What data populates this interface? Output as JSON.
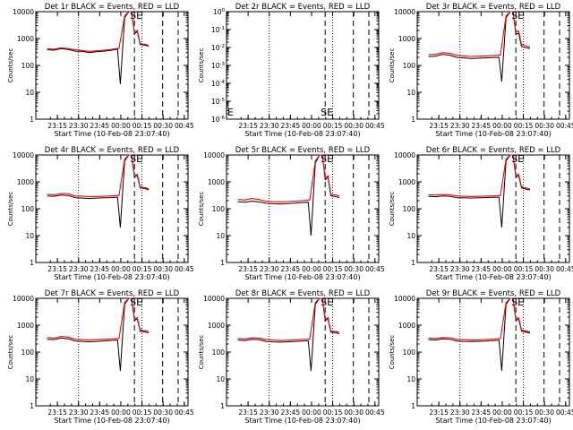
{
  "window": {
    "title": ""
  },
  "common": {
    "xlabel": "Start Time (10-Feb-08 23:07:40)",
    "ylabel": "Counts/sec",
    "x_ticks": [
      "23:15",
      "23:30",
      "23:45",
      "00:00",
      "00:15",
      "00:30",
      "00:45"
    ],
    "y_tick_labels_log": [
      "1",
      "10",
      "100",
      "1000",
      "10000"
    ],
    "y_tick_labels_det2": [
      "10^0",
      "10^-1",
      "10^-2",
      "10^-3",
      "10^-4",
      "10^-5",
      "10^-6"
    ],
    "colors": {
      "events": "#000000",
      "lld": "#ff0000",
      "axes": "#000000"
    }
  },
  "chart_data": [
    {
      "type": "line",
      "title": "Det 1r BLACK = Events, RED = LLD",
      "xlabel": "Start Time (10-Feb-08 23:07:40)",
      "ylabel": "Counts/sec",
      "x_ticks": [
        "23:15",
        "23:30",
        "23:45",
        "00:00",
        "00:15",
        "00:30",
        "00:45"
      ],
      "yscale": "log",
      "ylim": [
        1,
        10000
      ],
      "annotations": [
        "SE"
      ],
      "series": [
        {
          "name": "Events",
          "color": "#000000",
          "x": [
            0,
            5,
            10,
            15,
            20,
            25,
            30,
            35,
            40,
            45,
            50,
            52,
            55,
            58,
            60,
            62,
            64,
            66,
            70,
            72
          ],
          "y": [
            380,
            370,
            420,
            390,
            340,
            330,
            300,
            320,
            340,
            360,
            400,
            20,
            6000,
            10000,
            10000,
            1500,
            1800,
            600,
            560,
            520
          ]
        },
        {
          "name": "LLD",
          "color": "#ff0000",
          "x": [
            0,
            5,
            10,
            15,
            20,
            25,
            30,
            35,
            40,
            45,
            50,
            51,
            55,
            58,
            60,
            62,
            64,
            66,
            70,
            72
          ],
          "y": [
            420,
            400,
            450,
            420,
            380,
            360,
            330,
            350,
            370,
            390,
            430,
            430,
            7000,
            10000,
            10000,
            1700,
            2000,
            650,
            600,
            560
          ]
        }
      ]
    },
    {
      "type": "line",
      "title": "Det 2r BLACK = Events, RED = LLD",
      "xlabel": "Start Time (10-Feb-08 23:07:40)",
      "ylabel": "Counts/sec",
      "x_ticks": [
        "23:15",
        "23:30",
        "23:45",
        "00:00",
        "00:15",
        "00:30",
        "00:45"
      ],
      "yscale": "log",
      "ylim": [
        1e-06,
        1
      ],
      "annotations": [
        "E",
        "SE"
      ],
      "series": []
    },
    {
      "type": "line",
      "title": "Det 3r BLACK = Events, RED = LLD",
      "xlabel": "Start Time (10-Feb-08 23:07:40)",
      "ylabel": "Counts/sec",
      "x_ticks": [
        "23:15",
        "23:30",
        "23:45",
        "00:00",
        "00:15",
        "00:30",
        "00:45"
      ],
      "yscale": "log",
      "ylim": [
        1,
        10000
      ],
      "annotations": [
        "SE"
      ],
      "series": [
        {
          "name": "Events",
          "color": "#000000",
          "x": [
            0,
            5,
            10,
            15,
            20,
            25,
            30,
            35,
            40,
            45,
            50,
            52,
            55,
            58,
            60,
            62,
            64,
            66,
            70,
            72
          ],
          "y": [
            210,
            220,
            260,
            240,
            200,
            190,
            180,
            185,
            190,
            195,
            200,
            25,
            6000,
            10000,
            10000,
            1400,
            1600,
            500,
            450,
            420
          ]
        },
        {
          "name": "LLD",
          "color": "#ff0000",
          "x": [
            0,
            5,
            10,
            15,
            20,
            25,
            30,
            35,
            40,
            45,
            50,
            51,
            55,
            58,
            60,
            62,
            64,
            66,
            70,
            72
          ],
          "y": [
            250,
            260,
            300,
            280,
            240,
            225,
            215,
            220,
            225,
            230,
            240,
            240,
            7000,
            10000,
            10000,
            1700,
            1900,
            600,
            520,
            480
          ]
        }
      ]
    },
    {
      "type": "line",
      "title": "Det 4r BLACK = Events, RED = LLD",
      "xlabel": "Start Time (10-Feb-08 23:07:40)",
      "ylabel": "Counts/sec",
      "x_ticks": [
        "23:15",
        "23:30",
        "23:45",
        "00:00",
        "00:15",
        "00:30",
        "00:45"
      ],
      "yscale": "log",
      "ylim": [
        1,
        10000
      ],
      "annotations": [
        "SE"
      ],
      "series": [
        {
          "name": "Events",
          "color": "#000000",
          "x": [
            0,
            5,
            10,
            15,
            20,
            25,
            30,
            35,
            40,
            45,
            50,
            52,
            55,
            58,
            60,
            62,
            64,
            66,
            70,
            72
          ],
          "y": [
            300,
            290,
            320,
            310,
            260,
            250,
            240,
            250,
            255,
            260,
            270,
            20,
            6000,
            10000,
            10000,
            1500,
            1700,
            600,
            550,
            500
          ]
        },
        {
          "name": "LLD",
          "color": "#ff0000",
          "x": [
            0,
            5,
            10,
            15,
            20,
            25,
            30,
            35,
            40,
            45,
            50,
            51,
            55,
            58,
            60,
            62,
            64,
            66,
            70,
            72
          ],
          "y": [
            350,
            330,
            370,
            360,
            300,
            290,
            280,
            285,
            290,
            300,
            310,
            310,
            7000,
            10000,
            10000,
            1700,
            1900,
            650,
            600,
            550
          ]
        }
      ]
    },
    {
      "type": "line",
      "title": "Det 5r BLACK = Events, RED = LLD",
      "xlabel": "Start Time (10-Feb-08 23:07:40)",
      "ylabel": "Counts/sec",
      "x_ticks": [
        "23:15",
        "23:30",
        "23:45",
        "00:00",
        "00:15",
        "00:30",
        "00:45"
      ],
      "yscale": "log",
      "ylim": [
        1,
        10000
      ],
      "annotations": [
        "SE"
      ],
      "series": [
        {
          "name": "Events",
          "color": "#000000",
          "x": [
            0,
            5,
            10,
            15,
            20,
            25,
            30,
            35,
            40,
            45,
            50,
            52,
            55,
            58,
            60,
            62,
            64,
            66,
            70,
            72
          ],
          "y": [
            180,
            175,
            190,
            180,
            160,
            155,
            150,
            155,
            160,
            170,
            175,
            10,
            5000,
            10000,
            10000,
            1200,
            1500,
            300,
            280,
            260
          ]
        },
        {
          "name": "LLD",
          "color": "#ff0000",
          "x": [
            0,
            5,
            10,
            15,
            20,
            25,
            30,
            35,
            40,
            45,
            50,
            51,
            55,
            58,
            60,
            62,
            64,
            66,
            70,
            72
          ],
          "y": [
            220,
            210,
            240,
            220,
            190,
            185,
            180,
            185,
            190,
            200,
            210,
            210,
            6000,
            10000,
            10000,
            1400,
            1700,
            340,
            320,
            300
          ]
        }
      ]
    },
    {
      "type": "line",
      "title": "Det 6r BLACK = Events, RED = LLD",
      "xlabel": "Start Time (10-Feb-08 23:07:40)",
      "ylabel": "Counts/sec",
      "x_ticks": [
        "23:15",
        "23:30",
        "23:45",
        "00:00",
        "00:15",
        "00:30",
        "00:45"
      ],
      "yscale": "log",
      "ylim": [
        1,
        10000
      ],
      "annotations": [
        "SE"
      ],
      "series": [
        {
          "name": "Events",
          "color": "#000000",
          "x": [
            0,
            5,
            10,
            15,
            20,
            25,
            30,
            35,
            40,
            45,
            50,
            52,
            55,
            58,
            60,
            62,
            64,
            66,
            70,
            72
          ],
          "y": [
            290,
            280,
            300,
            290,
            260,
            255,
            250,
            255,
            260,
            265,
            270,
            20,
            6000,
            10000,
            10000,
            1500,
            1700,
            600,
            520,
            500
          ]
        },
        {
          "name": "LLD",
          "color": "#ff0000",
          "x": [
            0,
            5,
            10,
            15,
            20,
            25,
            30,
            35,
            40,
            45,
            50,
            51,
            55,
            58,
            60,
            62,
            64,
            66,
            70,
            72
          ],
          "y": [
            330,
            320,
            340,
            330,
            300,
            290,
            285,
            290,
            295,
            300,
            310,
            310,
            7000,
            10000,
            10000,
            1700,
            1900,
            650,
            580,
            550
          ]
        }
      ]
    },
    {
      "type": "line",
      "title": "Det 7r BLACK = Events, RED = LLD",
      "xlabel": "Start Time (10-Feb-08 23:07:40)",
      "ylabel": "Counts/sec",
      "x_ticks": [
        "23:15",
        "23:30",
        "23:45",
        "00:00",
        "00:15",
        "00:30",
        "00:45"
      ],
      "yscale": "log",
      "ylim": [
        1,
        10000
      ],
      "annotations": [
        "SE"
      ],
      "series": [
        {
          "name": "Events",
          "color": "#000000",
          "x": [
            0,
            5,
            10,
            15,
            20,
            25,
            30,
            35,
            40,
            45,
            50,
            52,
            55,
            58,
            60,
            62,
            64,
            66,
            70,
            72
          ],
          "y": [
            300,
            290,
            330,
            310,
            260,
            250,
            240,
            250,
            260,
            270,
            280,
            20,
            6000,
            10000,
            10000,
            1500,
            1700,
            600,
            560,
            520
          ]
        },
        {
          "name": "LLD",
          "color": "#ff0000",
          "x": [
            0,
            5,
            10,
            15,
            20,
            25,
            30,
            35,
            40,
            45,
            50,
            51,
            55,
            58,
            60,
            62,
            64,
            66,
            70,
            72
          ],
          "y": [
            350,
            330,
            380,
            360,
            300,
            290,
            280,
            290,
            300,
            310,
            320,
            320,
            7000,
            10000,
            10000,
            1700,
            1900,
            650,
            620,
            580
          ]
        }
      ]
    },
    {
      "type": "line",
      "title": "Det 8r BLACK = Events, RED = LLD",
      "xlabel": "Start Time (10-Feb-08 23:07:40)",
      "ylabel": "Counts/sec",
      "x_ticks": [
        "23:15",
        "23:30",
        "23:45",
        "00:00",
        "00:15",
        "00:30",
        "00:45"
      ],
      "yscale": "log",
      "ylim": [
        1,
        10000
      ],
      "annotations": [
        "SE"
      ],
      "series": [
        {
          "name": "Events",
          "color": "#000000",
          "x": [
            0,
            5,
            10,
            15,
            20,
            25,
            30,
            35,
            40,
            45,
            50,
            52,
            55,
            58,
            60,
            62,
            64,
            66,
            70,
            72
          ],
          "y": [
            280,
            270,
            300,
            290,
            250,
            240,
            235,
            240,
            245,
            255,
            265,
            20,
            6000,
            10000,
            10000,
            1500,
            1700,
            550,
            520,
            480
          ]
        },
        {
          "name": "LLD",
          "color": "#ff0000",
          "x": [
            0,
            5,
            10,
            15,
            20,
            25,
            30,
            35,
            40,
            45,
            50,
            51,
            55,
            58,
            60,
            62,
            64,
            66,
            70,
            72
          ],
          "y": [
            320,
            310,
            340,
            330,
            290,
            280,
            270,
            275,
            285,
            295,
            305,
            305,
            7000,
            10000,
            10000,
            1700,
            1900,
            600,
            580,
            540
          ]
        }
      ]
    },
    {
      "type": "line",
      "title": "Det 9r BLACK = Events, RED = LLD",
      "xlabel": "Start Time (10-Feb-08 23:07:40)",
      "ylabel": "Counts/sec",
      "x_ticks": [
        "23:15",
        "23:30",
        "23:45",
        "00:00",
        "00:15",
        "00:30",
        "00:45"
      ],
      "yscale": "log",
      "ylim": [
        1,
        10000
      ],
      "annotations": [
        "SE"
      ],
      "series": [
        {
          "name": "Events",
          "color": "#000000",
          "x": [
            0,
            5,
            10,
            15,
            20,
            25,
            30,
            35,
            40,
            45,
            50,
            52,
            55,
            58,
            60,
            62,
            64,
            66,
            70,
            72
          ],
          "y": [
            290,
            280,
            310,
            300,
            260,
            250,
            245,
            250,
            255,
            265,
            275,
            20,
            6000,
            10000,
            10000,
            1500,
            1700,
            600,
            540,
            500
          ]
        },
        {
          "name": "LLD",
          "color": "#ff0000",
          "x": [
            0,
            5,
            10,
            15,
            20,
            25,
            30,
            35,
            40,
            45,
            50,
            51,
            55,
            58,
            60,
            62,
            64,
            66,
            70,
            72
          ],
          "y": [
            330,
            320,
            350,
            340,
            300,
            290,
            280,
            285,
            295,
            305,
            315,
            315,
            7000,
            10000,
            10000,
            1700,
            1900,
            650,
            600,
            560
          ]
        }
      ]
    }
  ]
}
